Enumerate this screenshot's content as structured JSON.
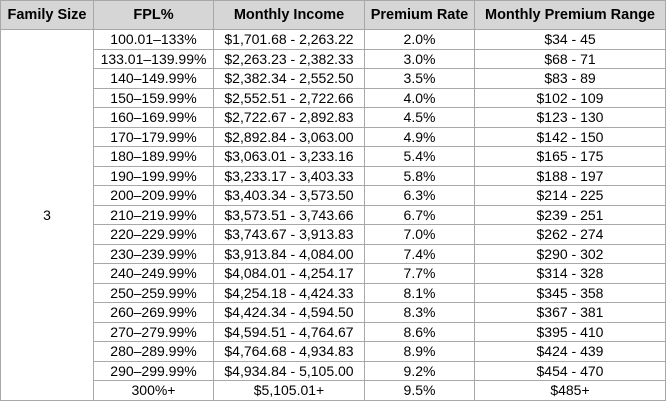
{
  "headers": [
    "Family Size",
    "FPL%",
    "Monthly Income",
    "Premium Rate",
    "Monthly Premium Range"
  ],
  "family_size": "3",
  "rows": [
    [
      "100.01–133%",
      "$1,701.68 - 2,263.22",
      "2.0%",
      "$34 - 45"
    ],
    [
      "133.01–139.99%",
      "$2,263.23 - 2,382.33",
      "3.0%",
      "$68 - 71"
    ],
    [
      "140–149.99%",
      "$2,382.34 - 2,552.50",
      "3.5%",
      "$83 - 89"
    ],
    [
      "150–159.99%",
      "$2,552.51 - 2,722.66",
      "4.0%",
      "$102 - 109"
    ],
    [
      "160–169.99%",
      "$2,722.67 - 2,892.83",
      "4.5%",
      "$123 - 130"
    ],
    [
      "170–179.99%",
      "$2,892.84 - 3,063.00",
      "4.9%",
      "$142 - 150"
    ],
    [
      "180–189.99%",
      "$3,063.01 - 3,233.16",
      "5.4%",
      "$165 - 175"
    ],
    [
      "190–199.99%",
      "$3,233.17 - 3,403.33",
      "5.8%",
      "$188 - 197"
    ],
    [
      "200–209.99%",
      "$3,403.34 - 3,573.50",
      "6.3%",
      "$214 - 225"
    ],
    [
      "210–219.99%",
      "$3,573.51 - 3,743.66",
      "6.7%",
      "$239 - 251"
    ],
    [
      "220–229.99%",
      "$3,743.67 - 3,913.83",
      "7.0%",
      "$262 - 274"
    ],
    [
      "230–239.99%",
      "$3,913.84 - 4,084.00",
      "7.4%",
      "$290 - 302"
    ],
    [
      "240–249.99%",
      "$4,084.01 - 4,254.17",
      "7.7%",
      "$314 - 328"
    ],
    [
      "250–259.99%",
      "$4,254.18 - 4,424.33",
      "8.1%",
      "$345 - 358"
    ],
    [
      "260–269.99%",
      "$4,424.34 - 4,594.50",
      "8.3%",
      "$367 - 381"
    ],
    [
      "270–279.99%",
      "$4,594.51 - 4,764.67",
      "8.6%",
      "$395 - 410"
    ],
    [
      "280–289.99%",
      "$4,764.68 - 4,934.83",
      "8.9%",
      "$424 - 439"
    ],
    [
      "290–299.99%",
      "$4,934.84 - 5,105.00",
      "9.2%",
      "$454 - 470"
    ],
    [
      "300%+",
      "$5,105.01+",
      "9.5%",
      "$485+"
    ]
  ]
}
